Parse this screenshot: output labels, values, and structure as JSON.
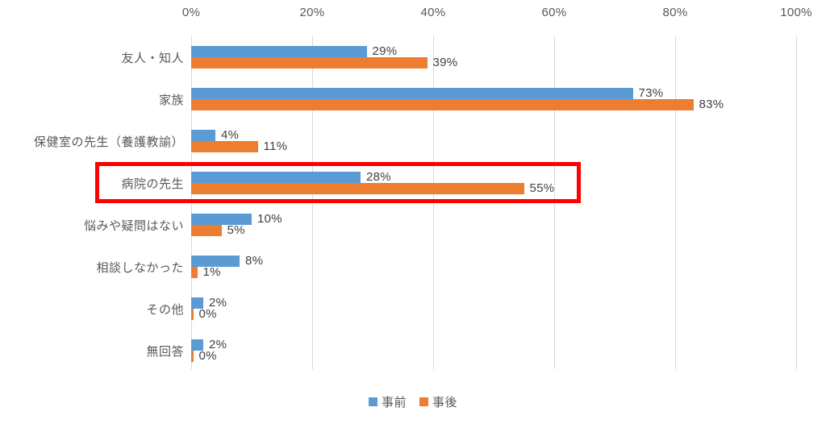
{
  "chart_data": {
    "type": "bar",
    "orientation": "horizontal",
    "title": "",
    "categories": [
      "友人・知人",
      "家族",
      "保健室の先生（養護教諭）",
      "病院の先生",
      "悩みや疑問はない",
      "相談しなかった",
      "その他",
      "無回答"
    ],
    "series": [
      {
        "name": "事前",
        "color": "#5b9bd5",
        "values": [
          29,
          73,
          4,
          28,
          10,
          8,
          2,
          2
        ]
      },
      {
        "name": "事後",
        "color": "#ed7d31",
        "values": [
          39,
          83,
          11,
          55,
          5,
          1,
          0,
          0
        ]
      }
    ],
    "data_label_format": "{value}%",
    "x_axis": {
      "position": "top",
      "min": 0,
      "max": 100,
      "tick_step": 20,
      "ticks": [
        "0%",
        "20%",
        "40%",
        "60%",
        "80%",
        "100%"
      ]
    },
    "grid": true,
    "legend": {
      "position": "bottom",
      "items": [
        "事前",
        "事後"
      ]
    },
    "annotation": {
      "type": "highlight-box",
      "category": "病院の先生",
      "color": "#ff0000"
    }
  },
  "colors": {
    "background": "#ffffff",
    "gridline": "#d9d9d9",
    "axis_text": "#595959",
    "category_text": "#595959",
    "value_text": "#404040",
    "series_pre": "#5b9bd5",
    "series_post": "#ed7d31",
    "highlight": "#ff0000"
  }
}
